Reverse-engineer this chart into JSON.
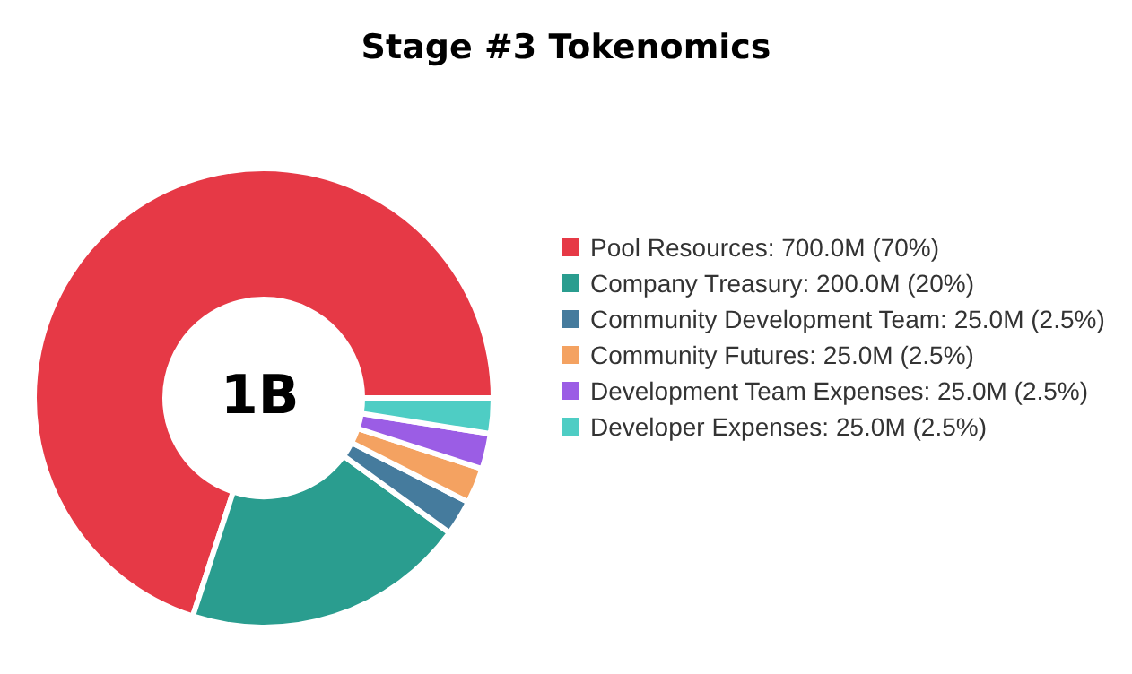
{
  "chart_data": {
    "type": "donut",
    "title": "Stage #3 Tokenomics",
    "categories": [
      "Pool Resources",
      "Company Treasury",
      "Community Development Team",
      "Community Futures",
      "Development Team Expenses",
      "Developer Expenses"
    ],
    "values": [
      70,
      20,
      2.5,
      2.5,
      2.5,
      2.5
    ],
    "value_labels": [
      "700.0M (70%)",
      "200.0M (20%)",
      "25.0M (2.5%)",
      "25.0M (2.5%)",
      "25.0M (2.5%)",
      "25.0M (2.5%)"
    ],
    "colors": [
      "#e63946",
      "#2a9d8f",
      "#457b9d",
      "#f4a261",
      "#9b5de5",
      "#4ecdc4"
    ],
    "annotations": [
      "1B"
    ],
    "legend": "right"
  }
}
